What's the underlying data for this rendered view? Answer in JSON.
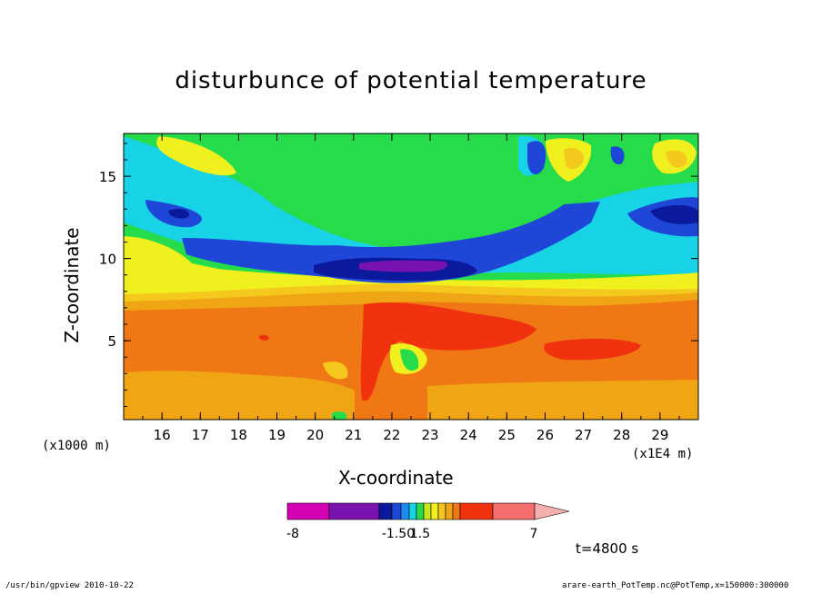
{
  "footer": {
    "program": "/usr/bin/gpview  2010-10-22",
    "source": "arare-earth_PotTemp.nc@PotTemp,x=150000:300000"
  },
  "time_label": "t=4800 s",
  "colorbar": {
    "labels": [
      "-8",
      "-1.50",
      "1.5",
      "7"
    ],
    "colors": [
      "#d400b4",
      "#7a12b0",
      "#0b1a9c",
      "#1e47d8",
      "#1a8cf0",
      "#18d2e6",
      "#26dc4a",
      "#c8e61e",
      "#f0f01e",
      "#f5c81e",
      "#f0a514",
      "#f07814",
      "#f0320f",
      "#f56e6e",
      "#f5afaf"
    ]
  },
  "chart_data": {
    "type": "heatmap",
    "title": "disturbunce of potential temperature",
    "xlabel": "X-coordinate",
    "ylabel": "Z-coordinate",
    "x_units_left": "(x1000 m)",
    "x_units_right": "(x1E4 m)",
    "x_ticks": [
      "16",
      "17",
      "18",
      "19",
      "20",
      "21",
      "22",
      "23",
      "24",
      "25",
      "26",
      "27",
      "28",
      "29"
    ],
    "x_tick_values": [
      16,
      17,
      18,
      19,
      20,
      21,
      22,
      23,
      24,
      25,
      26,
      27,
      28,
      29
    ],
    "y_ticks": [
      "5",
      "10",
      "15"
    ],
    "y_tick_values": [
      5,
      10,
      15
    ],
    "xlim": [
      15,
      30
    ],
    "ylim": [
      0.2,
      17.6
    ],
    "features": [
      {
        "level": 4,
        "value": -1.0,
        "x": 22.8,
        "z": 9.9,
        "w": 3.6,
        "h": 0.9
      },
      {
        "level": 3,
        "value": -2.0,
        "x": 22.8,
        "z": 10.0,
        "w": 3.0,
        "h": 0.6
      },
      {
        "level": 2,
        "value": -5.0,
        "x": 23.0,
        "z": 9.9,
        "w": 1.5,
        "h": 0.3
      },
      {
        "level": 13,
        "value": 5.0,
        "x": 21.5,
        "z": 4.5,
        "w": 0.5,
        "h": 3.5
      },
      {
        "level": 13,
        "value": 5.0,
        "x": 23.5,
        "z": 6.2,
        "w": 2.8,
        "h": 1.0
      },
      {
        "level": 13,
        "value": 5.0,
        "x": 27.0,
        "z": 5.2,
        "w": 1.7,
        "h": 0.7
      }
    ]
  }
}
